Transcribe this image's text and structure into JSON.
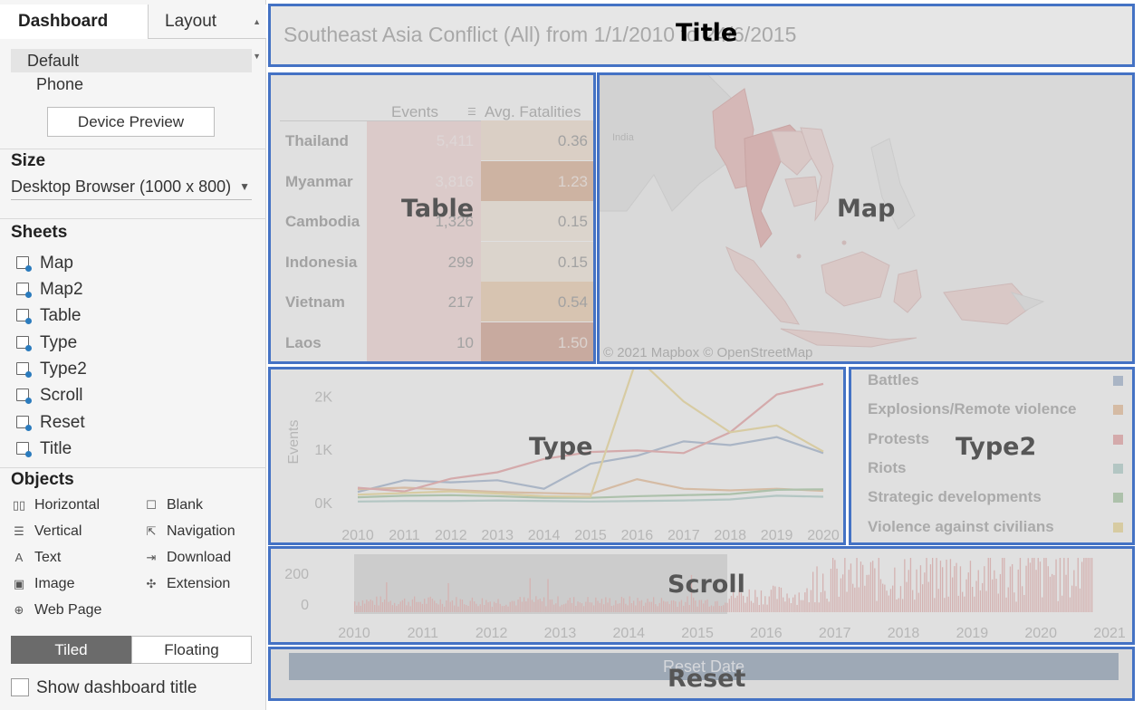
{
  "left_panel": {
    "tabs": {
      "dashboard": "Dashboard",
      "layout": "Layout"
    },
    "devices": [
      "Default",
      "Phone"
    ],
    "device_preview": "Device Preview",
    "size": {
      "label": "Size",
      "value": "Desktop Browser (1000 x 800)"
    },
    "sheets": {
      "label": "Sheets",
      "items": [
        "Map",
        "Map2",
        "Table",
        "Type",
        "Type2",
        "Scroll",
        "Reset",
        "Title"
      ]
    },
    "objects": {
      "label": "Objects",
      "items": [
        {
          "label": "Horizontal",
          "icon": "horizontal-icon"
        },
        {
          "label": "Blank",
          "icon": "blank-icon"
        },
        {
          "label": "Vertical",
          "icon": "vertical-icon"
        },
        {
          "label": "Navigation",
          "icon": "navigation-icon"
        },
        {
          "label": "Text",
          "icon": "text-icon"
        },
        {
          "label": "Download",
          "icon": "download-icon"
        },
        {
          "label": "Image",
          "icon": "image-icon"
        },
        {
          "label": "Extension",
          "icon": "extension-icon"
        },
        {
          "label": "Web Page",
          "icon": "web-page-icon"
        }
      ]
    },
    "layout_toggle": {
      "tiled": "Tiled",
      "floating": "Floating"
    },
    "show_title": "Show dashboard title"
  },
  "dashboard": {
    "title_text": "Southeast Asia Conflict (All) from 1/1/2010 to 24/6/2015",
    "zone_labels": {
      "title": "Title",
      "table": "Table",
      "map": "Map",
      "type": "Type",
      "type2": "Type2",
      "scroll": "Scroll",
      "reset": "Reset"
    },
    "table": {
      "headers": [
        "Events",
        "Avg. Fatalities"
      ],
      "rows": [
        {
          "country": "Thailand",
          "events": "5,411",
          "fatalities": "0.36"
        },
        {
          "country": "Myanmar",
          "events": "3,816",
          "fatalities": "1.23"
        },
        {
          "country": "Cambodia",
          "events": "1,326",
          "fatalities": "0.15"
        },
        {
          "country": "Indonesia",
          "events": "299",
          "fatalities": "0.15"
        },
        {
          "country": "Vietnam",
          "events": "217",
          "fatalities": "0.54"
        },
        {
          "country": "Laos",
          "events": "10",
          "fatalities": "1.50"
        }
      ]
    },
    "map": {
      "label_india": "India",
      "credit": "© 2021 Mapbox © OpenStreetMap"
    },
    "reset_button": "Reset Date",
    "colors": {
      "battles": "#9aaecb",
      "explosions": "#e8b98e",
      "protests": "#e6999b",
      "riots": "#a9cdc6",
      "strategic": "#9fc49b",
      "violence": "#ecd68b",
      "zone_border": "#4472c4"
    }
  },
  "chart_data": [
    {
      "type": "line",
      "ylabel": "Events",
      "x": [
        2010,
        2011,
        2012,
        2013,
        2014,
        2015,
        2016,
        2017,
        2018,
        2019,
        2020
      ],
      "y_ticks": [
        "2K",
        "1K",
        "0K"
      ],
      "ylim": [
        0,
        2500
      ],
      "series": [
        {
          "name": "Battles",
          "values": [
            200,
            420,
            380,
            420,
            260,
            730,
            880,
            1150,
            1080,
            1230,
            930
          ]
        },
        {
          "name": "Explosions/Remote violence",
          "values": [
            250,
            280,
            240,
            200,
            180,
            160,
            440,
            260,
            230,
            260,
            220
          ]
        },
        {
          "name": "Protests",
          "values": [
            280,
            210,
            450,
            570,
            820,
            950,
            980,
            930,
            1320,
            2030,
            2230
          ]
        },
        {
          "name": "Riots",
          "values": [
            20,
            30,
            30,
            40,
            30,
            20,
            30,
            40,
            60,
            130,
            110
          ]
        },
        {
          "name": "Strategic developments",
          "values": [
            100,
            130,
            140,
            120,
            90,
            90,
            120,
            140,
            160,
            240,
            250
          ]
        },
        {
          "name": "Violence against civilians",
          "values": [
            150,
            180,
            210,
            170,
            120,
            110,
            2720,
            1900,
            1320,
            1450,
            960
          ]
        }
      ]
    },
    {
      "type": "bar",
      "title": "Scroll",
      "y_ticks": [
        "200",
        "0"
      ],
      "ylim": [
        0,
        250
      ],
      "x_ticks": [
        "2010",
        "2011",
        "2012",
        "2013",
        "2014",
        "2015",
        "2016",
        "2017",
        "2018",
        "2019",
        "2020",
        "2021"
      ]
    }
  ]
}
